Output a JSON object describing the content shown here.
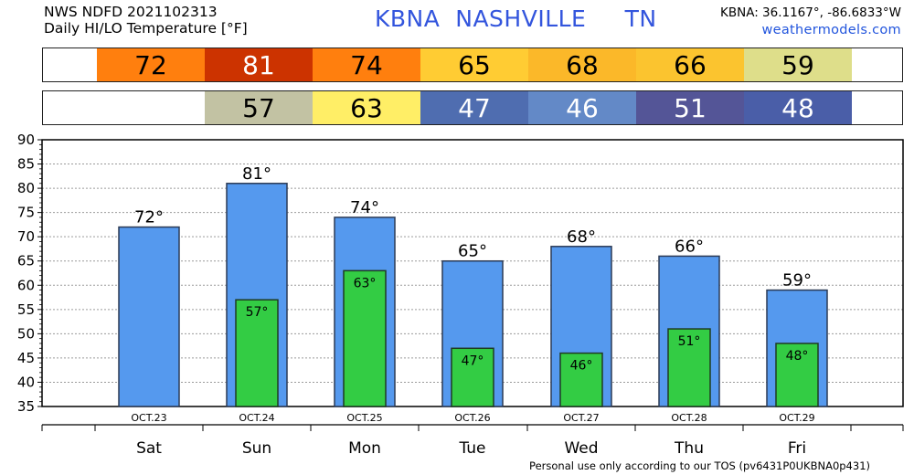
{
  "header": {
    "line1": "NWS NDFD 2021102313",
    "line2": "Daily HI/LO Temperature [°F]",
    "location": "KBNA  NASHVILLE     TN",
    "coords": "KBNA: 36.1167°, -86.6833°W",
    "site": "weathermodels.com"
  },
  "hi_strip": [
    {
      "value": "72",
      "color": "#ff7f0e"
    },
    {
      "value": "81",
      "color": "#cc3300"
    },
    {
      "value": "74",
      "color": "#ff7f0e"
    },
    {
      "value": "65",
      "color": "#ffcc33"
    },
    {
      "value": "68",
      "color": "#fbb829"
    },
    {
      "value": "66",
      "color": "#fbc42f"
    },
    {
      "value": "59",
      "color": "#dede8a"
    }
  ],
  "lo_strip": [
    {
      "value": "",
      "color": "#ffffff"
    },
    {
      "value": "57",
      "color": "#c2c2a3"
    },
    {
      "value": "63",
      "color": "#ffee66"
    },
    {
      "value": "47",
      "color": "#4f6db0"
    },
    {
      "value": "46",
      "color": "#6389c7"
    },
    {
      "value": "51",
      "color": "#545597"
    },
    {
      "value": "48",
      "color": "#4a5ea8"
    }
  ],
  "colors": {
    "hi_bar": "#5599ee",
    "lo_bar": "#33cc44",
    "lo_strip_text_light": "#ffffff",
    "strip_text_dark": "#000000"
  },
  "chart_data": {
    "type": "bar",
    "categories": [
      "Sat",
      "Sun",
      "Mon",
      "Tue",
      "Wed",
      "Thu",
      "Fri"
    ],
    "dates": [
      "OCT.23",
      "OCT.24",
      "OCT.25",
      "OCT.26",
      "OCT.27",
      "OCT.28",
      "OCT.29"
    ],
    "series": [
      {
        "values": [
          72,
          81,
          74,
          65,
          68,
          66,
          59
        ],
        "labels": [
          "72°",
          "81°",
          "74°",
          "65°",
          "68°",
          "66°",
          "59°"
        ]
      },
      {
        "values": [
          null,
          57,
          63,
          47,
          46,
          51,
          48
        ],
        "labels": [
          "",
          "57°",
          "63°",
          "47°",
          "46°",
          "51°",
          "48°"
        ]
      }
    ],
    "ylim": [
      35,
      90
    ],
    "yticks": [
      "35",
      "40",
      "45",
      "50",
      "55",
      "60",
      "65",
      "70",
      "75",
      "80",
      "85",
      "90"
    ],
    "grid": true
  },
  "footer": "Personal use only according to our TOS (pv6431P0UKBNA0p431)"
}
